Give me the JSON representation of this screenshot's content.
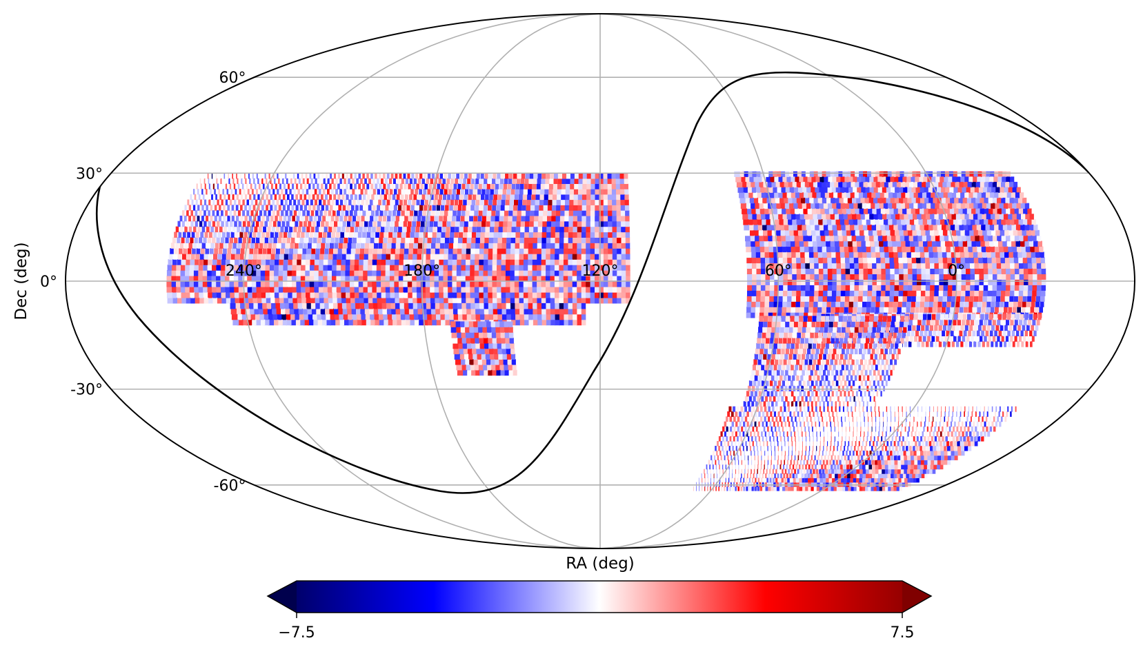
{
  "chart_data": {
    "type": "heatmap",
    "projection": "mollweide",
    "xlabel": "RA (deg)",
    "ylabel": "Dec (deg)",
    "ra_ticks": [
      240,
      180,
      120,
      60,
      0
    ],
    "ra_tick_labels": [
      "240°",
      "180°",
      "120°",
      "60°",
      "0°"
    ],
    "dec_ticks": [
      60,
      30,
      0,
      -30,
      -60
    ],
    "dec_tick_labels": [
      "60°",
      "30°",
      "0°",
      "-30°",
      "-60°"
    ],
    "grid": true,
    "colorbar": {
      "min": -7.5,
      "max": 7.5,
      "min_label": "−7.5",
      "max_label": "7.5",
      "cmap": "seismic",
      "extend": "both",
      "placement": "bottom"
    },
    "colors": {
      "neg_extreme": "#00004d",
      "neg": "#0000ff",
      "zero": "#ffffff",
      "pos": "#ff0000",
      "pos_extreme": "#800000"
    }
  }
}
